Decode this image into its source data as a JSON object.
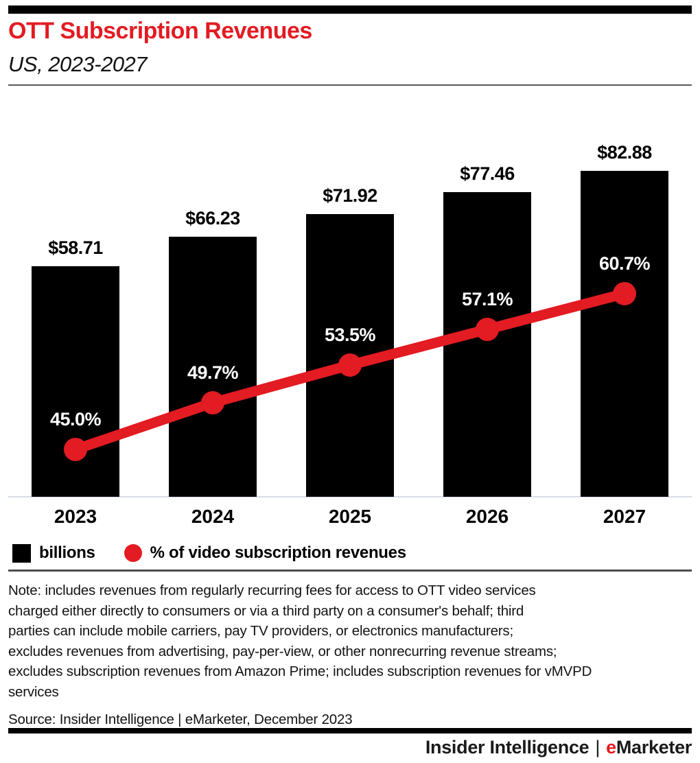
{
  "header": {
    "title": "OTT Subscription Revenues",
    "subtitle": "US, 2023-2027"
  },
  "chart_data": {
    "type": "bar",
    "title": "OTT Subscription Revenues",
    "subtitle": "US, 2023-2027",
    "categories": [
      "2023",
      "2024",
      "2025",
      "2026",
      "2027"
    ],
    "series": [
      {
        "name": "billions",
        "type": "bar",
        "unit": "US$ billions",
        "values": [
          58.71,
          66.23,
          71.92,
          77.46,
          82.88
        ],
        "labels": [
          "$58.71",
          "$66.23",
          "$71.92",
          "$77.46",
          "$82.88"
        ],
        "color": "#000000"
      },
      {
        "name": "% of video subscription revenues",
        "type": "line",
        "unit": "%",
        "values": [
          45.0,
          49.7,
          53.5,
          57.1,
          60.7
        ],
        "labels": [
          "45.0%",
          "49.7%",
          "53.5%",
          "57.1%",
          "60.7%"
        ],
        "color": "#e31b22"
      }
    ],
    "xlabel": "",
    "ylabel": "",
    "grid": false,
    "legend_position": "bottom"
  },
  "legend": {
    "bar_label": "billions",
    "line_label": "% of video subscription revenues"
  },
  "note": {
    "lines": [
      "Note: includes revenues from regularly recurring fees for access to OTT video services",
      "charged either directly to consumers or via a third party on a consumer's behalf; third",
      "parties can include mobile carriers, pay TV providers, or electronics manufacturers;",
      "excludes revenues from advertising, pay-per-view, or other nonrecurring revenue streams;",
      "excludes subscription revenues from Amazon Prime; includes subscription revenues for vMVPD",
      "services"
    ]
  },
  "source": "Source: Insider Intelligence | eMarketer, December 2023",
  "footer": {
    "company": "Insider Intelligence",
    "separator": "|",
    "brand_first_letter": "e",
    "brand_rest": "Marketer"
  },
  "colors": {
    "accent_red": "#e31b22",
    "bar_black": "#000000",
    "axis_line": "#d8dde6",
    "rule_gray": "#58595b"
  }
}
